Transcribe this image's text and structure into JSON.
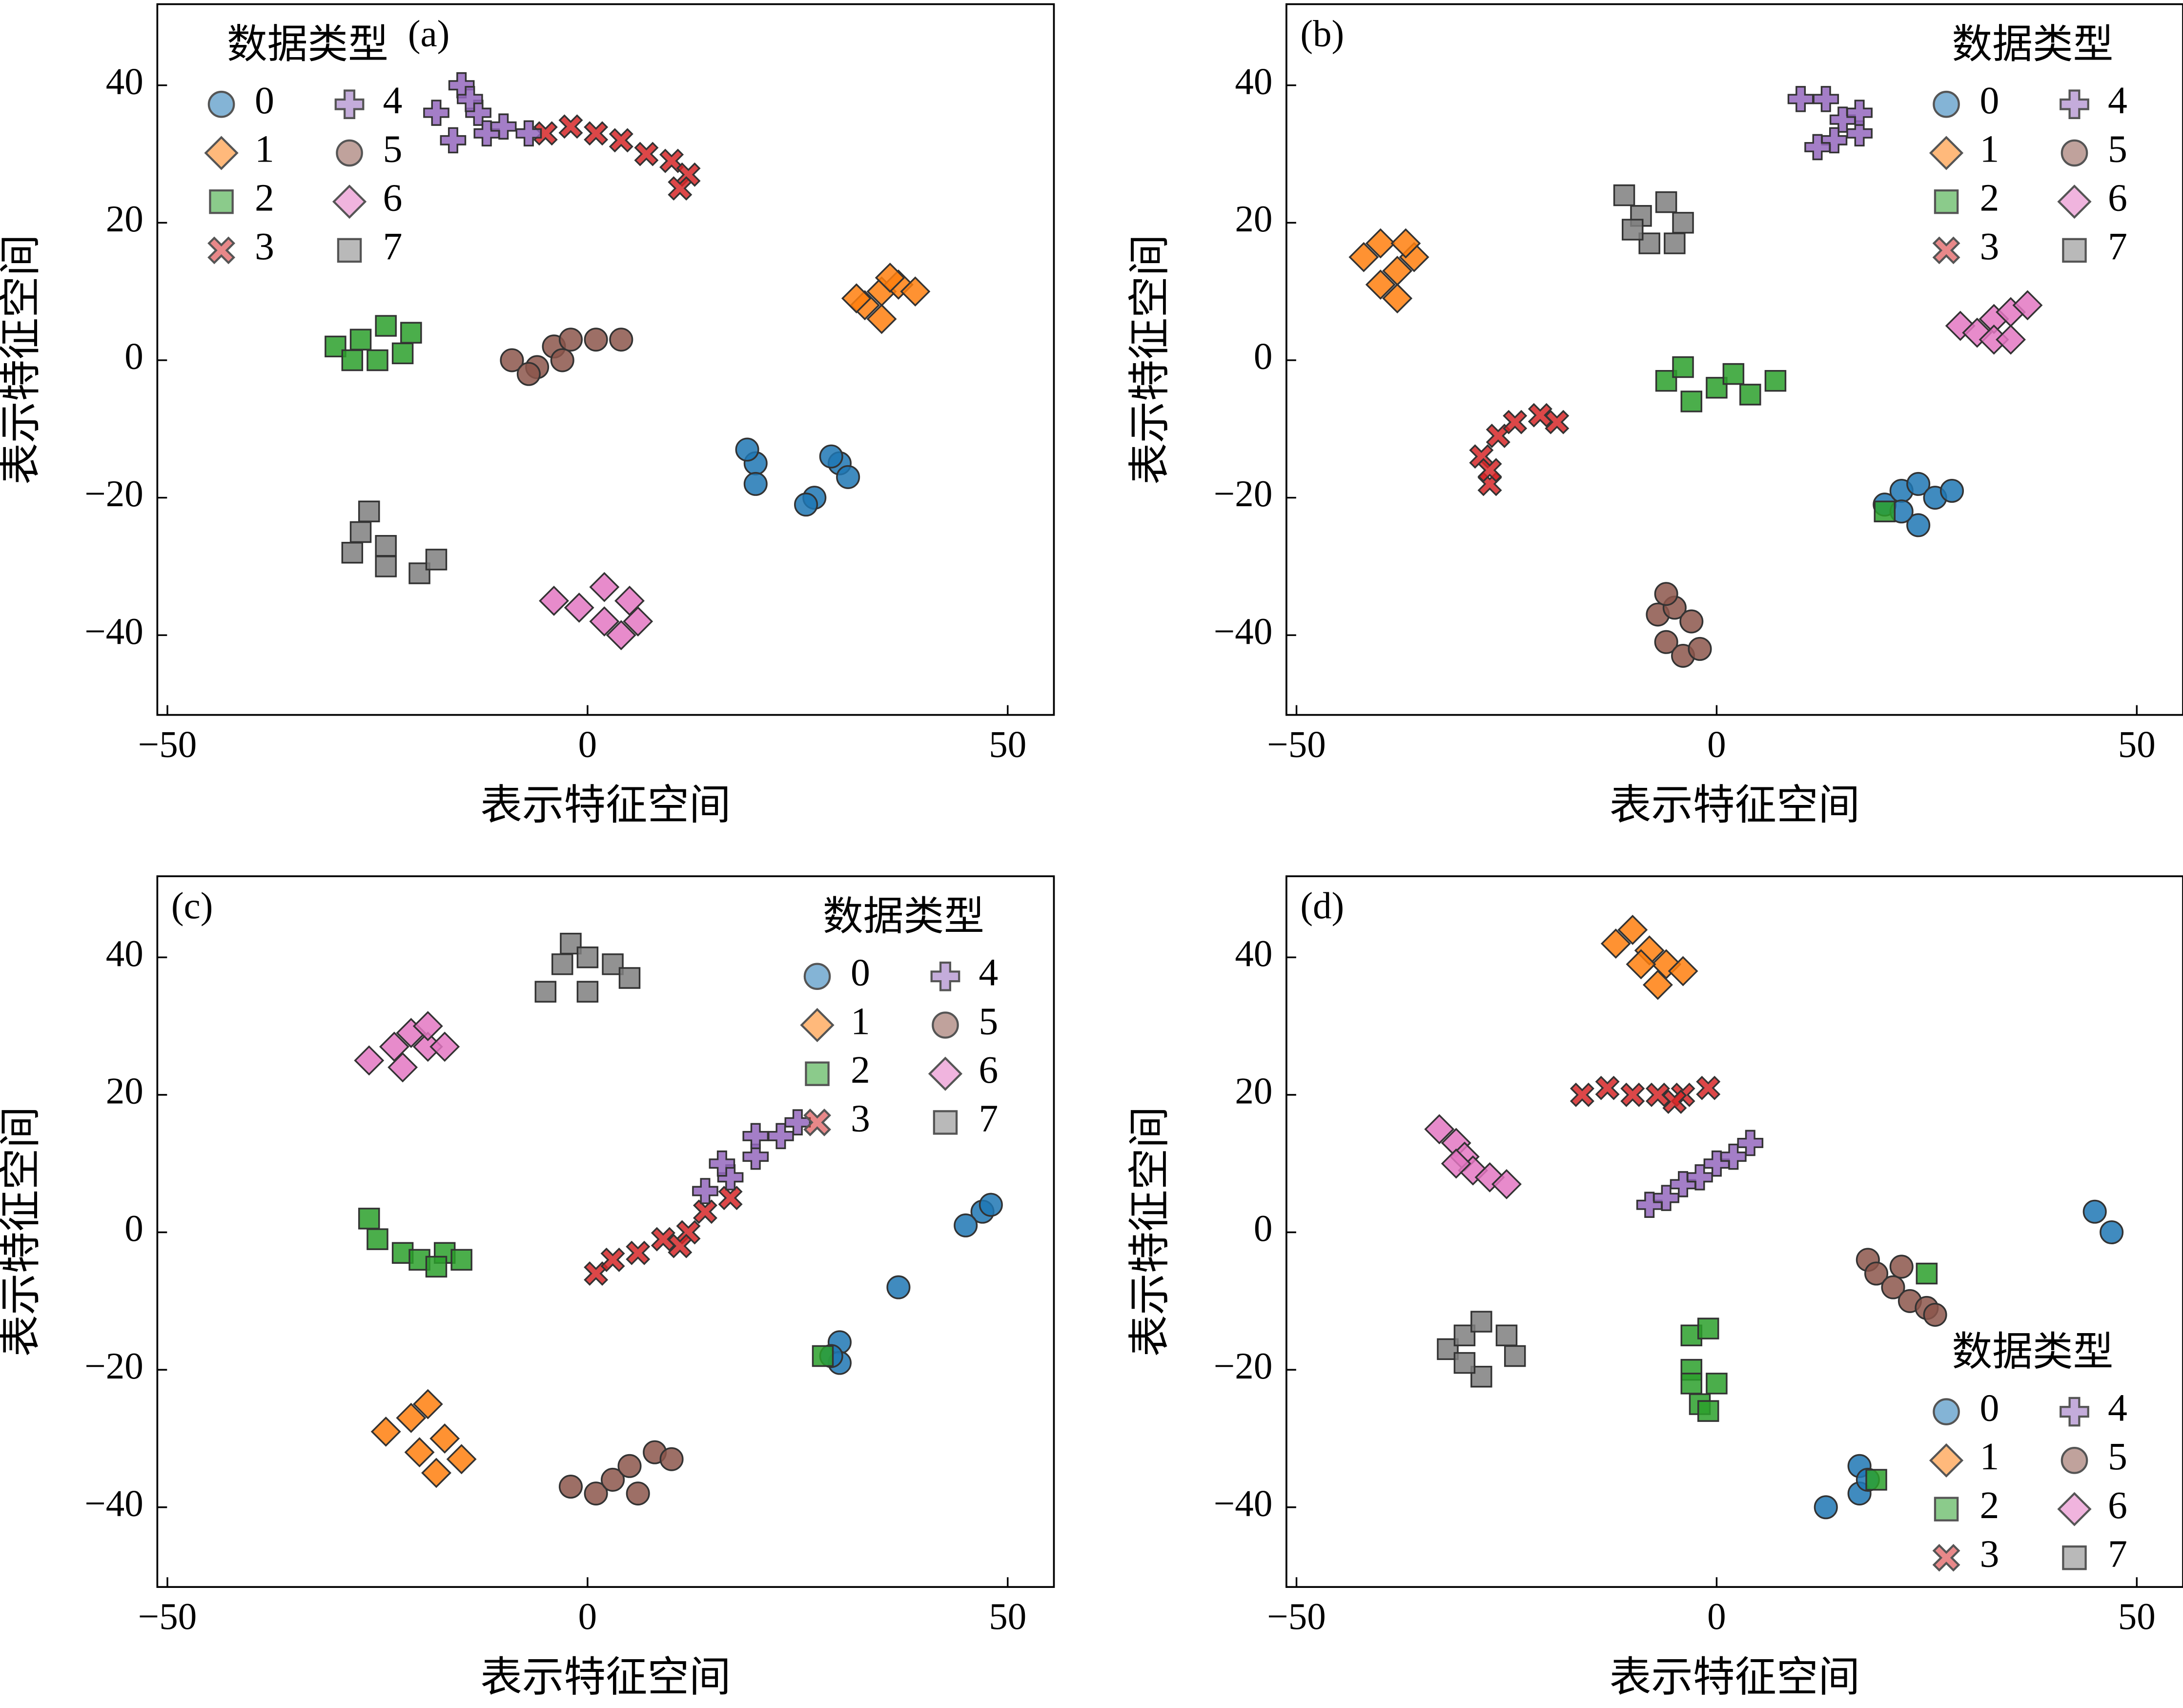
{
  "chart_data": [
    {
      "type": "scatter",
      "label": "(a)",
      "xlabel": "表示特征空间",
      "ylabel": "表示特征空间",
      "legend_title": "数据类型",
      "legend": "upper left",
      "xlim": [
        -51.2,
        55.5
      ],
      "ylim": [
        -51.6,
        51.8
      ],
      "xticks": [
        {
          "value": -50,
          "label": "−50"
        },
        0,
        50
      ],
      "yticks": [
        {
          "value": -40,
          "label": "−40"
        },
        {
          "value": -20,
          "label": "−20"
        },
        0,
        20,
        40
      ],
      "series": [
        {
          "name": "0",
          "color": "#1f77b4",
          "marker": "circle",
          "x": [
            20,
            20,
            19,
            27,
            26,
            30,
            31,
            29
          ],
          "y": [
            -15,
            -18,
            -13,
            -20,
            -21,
            -15,
            -17,
            -14
          ]
        },
        {
          "name": "1",
          "color": "#ff7f0e",
          "marker": "diamond",
          "x": [
            35,
            33,
            37,
            39,
            35,
            32,
            36
          ],
          "y": [
            10,
            8,
            11,
            10,
            6,
            9,
            12
          ]
        },
        {
          "name": "2",
          "color": "#2ca02c",
          "marker": "square",
          "x": [
            -30,
            -27,
            -24,
            -22,
            -25,
            -21,
            -28
          ],
          "y": [
            2,
            3,
            5,
            1,
            0,
            4,
            0
          ]
        },
        {
          "name": "3",
          "color": "#d62728",
          "marker": "x",
          "x": [
            -5,
            -2,
            1,
            4,
            7,
            10,
            12,
            11
          ],
          "y": [
            33,
            34,
            33,
            32,
            30,
            29,
            27,
            25
          ]
        },
        {
          "name": "4",
          "color": "#9467bd",
          "marker": "plus",
          "x": [
            -18,
            -15,
            -13,
            -16,
            -12,
            -10,
            -7,
            -14
          ],
          "y": [
            36,
            40,
            36,
            32,
            33,
            34,
            33,
            38
          ]
        },
        {
          "name": "5",
          "color": "#8c564b",
          "marker": "circle",
          "x": [
            -9,
            -6,
            -4,
            -2,
            1,
            4,
            -7,
            -3
          ],
          "y": [
            0,
            -1,
            2,
            3,
            3,
            3,
            -2,
            0
          ]
        },
        {
          "name": "6",
          "color": "#e377c2",
          "marker": "diamond",
          "x": [
            -4,
            -1,
            2,
            4,
            5,
            2,
            6
          ],
          "y": [
            -35,
            -36,
            -38,
            -40,
            -35,
            -33,
            -38
          ]
        },
        {
          "name": "7",
          "color": "#7f7f7f",
          "marker": "square",
          "x": [
            -28,
            -27,
            -24,
            -24,
            -20,
            -18,
            -26
          ],
          "y": [
            -28,
            -25,
            -27,
            -30,
            -31,
            -29,
            -22
          ]
        }
      ]
    },
    {
      "type": "scatter",
      "label": "(b)",
      "xlabel": "表示特征空间",
      "ylabel": "表示特征空间",
      "legend_title": "数据类型",
      "legend": "upper right",
      "xlim": [
        -51.2,
        55.5
      ],
      "ylim": [
        -51.6,
        51.8
      ],
      "xticks": [
        {
          "value": -50,
          "label": "−50"
        },
        0,
        50
      ],
      "yticks": [
        {
          "value": -40,
          "label": "−40"
        },
        {
          "value": -20,
          "label": "−20"
        },
        0,
        20,
        40
      ],
      "series": [
        {
          "name": "0",
          "color": "#1f77b4",
          "marker": "circle",
          "x": [
            20,
            22,
            24,
            26,
            28,
            24,
            22
          ],
          "y": [
            -21,
            -19,
            -18,
            -20,
            -19,
            -24,
            -22
          ]
        },
        {
          "name": "1",
          "color": "#ff7f0e",
          "marker": "diamond",
          "x": [
            -42,
            -40,
            -38,
            -36,
            -40,
            -38,
            -37
          ],
          "y": [
            15,
            17,
            13,
            15,
            11,
            9,
            17
          ]
        },
        {
          "name": "2",
          "color": "#2ca02c",
          "marker": "square",
          "x": [
            -6,
            -3,
            0,
            2,
            4,
            7,
            -4,
            20
          ],
          "y": [
            -3,
            -6,
            -4,
            -2,
            -5,
            -3,
            -1,
            -22
          ]
        },
        {
          "name": "3",
          "color": "#d62728",
          "marker": "x",
          "x": [
            -27,
            -28,
            -26,
            -24,
            -21,
            -19,
            -27
          ],
          "y": [
            -18,
            -14,
            -11,
            -9,
            -8,
            -9,
            -16
          ]
        },
        {
          "name": "4",
          "color": "#9467bd",
          "marker": "plus",
          "x": [
            10,
            13,
            15,
            17,
            14,
            12,
            17
          ],
          "y": [
            38,
            38,
            35,
            33,
            32,
            31,
            36
          ]
        },
        {
          "name": "5",
          "color": "#8c564b",
          "marker": "circle",
          "x": [
            -7,
            -5,
            -3,
            -6,
            -4,
            -2,
            -6
          ],
          "y": [
            -37,
            -36,
            -38,
            -41,
            -43,
            -42,
            -34
          ]
        },
        {
          "name": "6",
          "color": "#e377c2",
          "marker": "diamond",
          "x": [
            29,
            31,
            33,
            35,
            37,
            33,
            35
          ],
          "y": [
            5,
            4,
            6,
            7,
            8,
            3,
            3
          ]
        },
        {
          "name": "7",
          "color": "#7f7f7f",
          "marker": "square",
          "x": [
            -11,
            -9,
            -6,
            -4,
            -8,
            -5,
            -10
          ],
          "y": [
            24,
            21,
            23,
            20,
            17,
            17,
            19
          ]
        }
      ]
    },
    {
      "type": "scatter",
      "label": "(c)",
      "xlabel": "表示特征空间",
      "ylabel": "表示特征空间",
      "legend_title": "数据类型",
      "legend": "upper right",
      "xlim": [
        -51.2,
        55.5
      ],
      "ylim": [
        -51.6,
        51.8
      ],
      "xticks": [
        {
          "value": -50,
          "label": "−50"
        },
        0,
        50
      ],
      "yticks": [
        {
          "value": -40,
          "label": "−40"
        },
        {
          "value": -20,
          "label": "−20"
        },
        0,
        20,
        40
      ],
      "series": [
        {
          "name": "0",
          "color": "#1f77b4",
          "marker": "circle",
          "x": [
            47,
            45,
            48,
            37,
            30,
            30,
            29
          ],
          "y": [
            3,
            1,
            4,
            -8,
            -16,
            -19,
            -18
          ]
        },
        {
          "name": "1",
          "color": "#ff7f0e",
          "marker": "diamond",
          "x": [
            -24,
            -21,
            -19,
            -20,
            -17,
            -15,
            -18
          ],
          "y": [
            -29,
            -27,
            -25,
            -32,
            -30,
            -33,
            -35
          ]
        },
        {
          "name": "2",
          "color": "#2ca02c",
          "marker": "square",
          "x": [
            -26,
            -25,
            -22,
            -20,
            -17,
            -15,
            -18,
            28
          ],
          "y": [
            2,
            -1,
            -3,
            -4,
            -3,
            -4,
            -5,
            -18
          ]
        },
        {
          "name": "3",
          "color": "#d62728",
          "marker": "x",
          "x": [
            1,
            3,
            6,
            9,
            12,
            14,
            17,
            11
          ],
          "y": [
            -6,
            -4,
            -3,
            -1,
            0,
            3,
            5,
            -2
          ]
        },
        {
          "name": "4",
          "color": "#9467bd",
          "marker": "plus",
          "x": [
            14,
            17,
            20,
            23,
            25,
            20,
            16
          ],
          "y": [
            6,
            8,
            11,
            14,
            16,
            14,
            10
          ]
        },
        {
          "name": "5",
          "color": "#8c564b",
          "marker": "circle",
          "x": [
            -2,
            1,
            3,
            5,
            8,
            10,
            6
          ],
          "y": [
            -37,
            -38,
            -36,
            -34,
            -32,
            -33,
            -38
          ]
        },
        {
          "name": "6",
          "color": "#e377c2",
          "marker": "diamond",
          "x": [
            -26,
            -23,
            -21,
            -19,
            -17,
            -22,
            -19
          ],
          "y": [
            25,
            27,
            29,
            27,
            27,
            24,
            30
          ]
        },
        {
          "name": "7",
          "color": "#7f7f7f",
          "marker": "square",
          "x": [
            -5,
            -3,
            -2,
            0,
            3,
            5,
            0
          ],
          "y": [
            35,
            39,
            42,
            40,
            39,
            37,
            35
          ]
        }
      ]
    },
    {
      "type": "scatter",
      "label": "(d)",
      "xlabel": "表示特征空间",
      "ylabel": "表示特征空间",
      "legend_title": "数据类型",
      "legend": "lower right",
      "xlim": [
        -51.2,
        55.5
      ],
      "ylim": [
        -51.6,
        51.8
      ],
      "xticks": [
        {
          "value": -50,
          "label": "−50"
        },
        0,
        50
      ],
      "yticks": [
        {
          "value": -40,
          "label": "−40"
        },
        {
          "value": -20,
          "label": "−20"
        },
        0,
        20,
        40
      ],
      "series": [
        {
          "name": "0",
          "color": "#1f77b4",
          "marker": "circle",
          "x": [
            45,
            47,
            17,
            17,
            18,
            13
          ],
          "y": [
            3,
            0,
            -34,
            -38,
            -36,
            -40
          ]
        },
        {
          "name": "1",
          "color": "#ff7f0e",
          "marker": "diamond",
          "x": [
            -12,
            -10,
            -8,
            -6,
            -4,
            -9,
            -7
          ],
          "y": [
            42,
            44,
            41,
            39,
            38,
            39,
            36
          ]
        },
        {
          "name": "2",
          "color": "#2ca02c",
          "marker": "square",
          "x": [
            -3,
            -1,
            -3,
            0,
            -2,
            -1,
            -3,
            19,
            25
          ],
          "y": [
            -15,
            -14,
            -20,
            -22,
            -25,
            -26,
            -22,
            -36,
            -6
          ]
        },
        {
          "name": "3",
          "color": "#d62728",
          "marker": "x",
          "x": [
            -16,
            -13,
            -10,
            -7,
            -4,
            -1,
            -5
          ],
          "y": [
            20,
            21,
            20,
            20,
            20,
            21,
            19
          ]
        },
        {
          "name": "4",
          "color": "#9467bd",
          "marker": "plus",
          "x": [
            -8,
            -6,
            -4,
            -2,
            0,
            2,
            4
          ],
          "y": [
            4,
            5,
            7,
            8,
            10,
            11,
            13
          ]
        },
        {
          "name": "5",
          "color": "#8c564b",
          "marker": "circle",
          "x": [
            18,
            19,
            21,
            23,
            25,
            26,
            22
          ],
          "y": [
            -4,
            -6,
            -8,
            -10,
            -11,
            -12,
            -5
          ]
        },
        {
          "name": "6",
          "color": "#e377c2",
          "marker": "diamond",
          "x": [
            -33,
            -31,
            -30,
            -29,
            -27,
            -25,
            -31
          ],
          "y": [
            15,
            13,
            11,
            9,
            8,
            7,
            10
          ]
        },
        {
          "name": "7",
          "color": "#7f7f7f",
          "marker": "square",
          "x": [
            -32,
            -30,
            -28,
            -25,
            -24,
            -28,
            -30
          ],
          "y": [
            -17,
            -15,
            -13,
            -15,
            -18,
            -21,
            -19
          ]
        }
      ]
    }
  ]
}
